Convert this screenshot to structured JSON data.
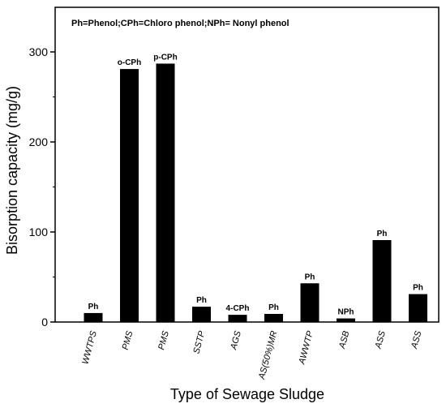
{
  "chart_data": {
    "type": "bar",
    "title": "",
    "note": "Ph=Phenol;CPh=Chloro phenol;NPh= Nonyl phenol",
    "xlabel": "Type of Sewage Sludge",
    "ylabel": "Bisorption capacity (mg/g)",
    "ylim": [
      0,
      350
    ],
    "yticks": [
      0,
      100,
      200,
      300
    ],
    "categories": [
      "WWTPS",
      "PMS",
      "PMS",
      "SSTP",
      "AGS",
      "AS(50%)MR",
      "AWWTP",
      "ASB",
      "ASS",
      "ASS"
    ],
    "values": [
      10,
      281,
      287,
      17,
      8,
      9,
      43,
      4,
      91,
      31
    ],
    "bar_labels": [
      "Ph",
      "o-CPh",
      "p-CPh",
      "Ph",
      "4-CPh",
      "Ph",
      "Ph",
      "NPh",
      "Ph",
      "Ph"
    ],
    "bar_color": "#000000",
    "grid": false
  }
}
